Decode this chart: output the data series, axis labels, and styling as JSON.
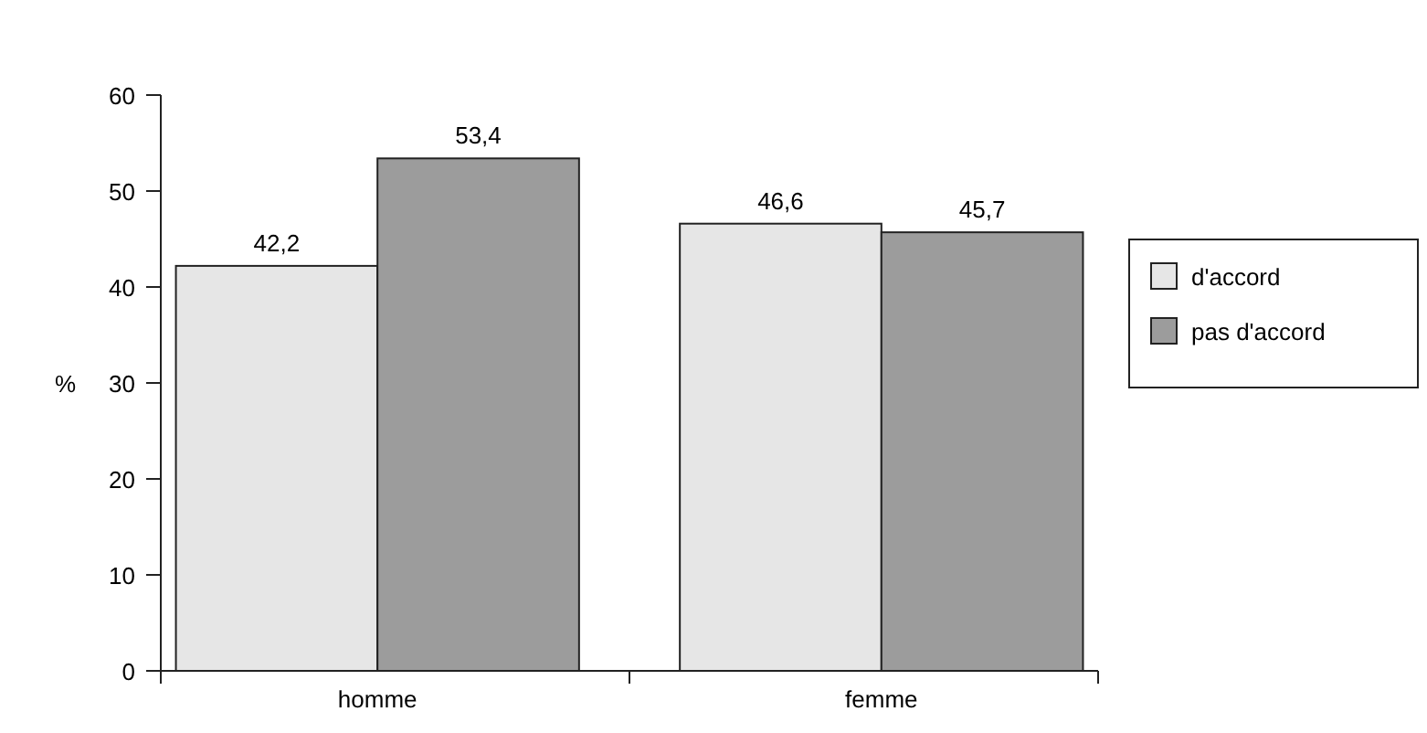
{
  "chart_data": {
    "type": "bar",
    "ylabel": "%",
    "categories": [
      "homme",
      "femme"
    ],
    "series": [
      {
        "name": "d'accord",
        "color": "#e6e6e6",
        "values": [
          42.2,
          46.6
        ],
        "value_labels": [
          "42,2",
          "46,6"
        ]
      },
      {
        "name": "pas d'accord",
        "color": "#9c9c9c",
        "values": [
          53.4,
          45.7
        ],
        "value_labels": [
          "53,4",
          "45,7"
        ]
      }
    ],
    "ylim": [
      0,
      60
    ],
    "yticks": [
      0,
      10,
      20,
      30,
      40,
      50,
      60
    ],
    "grid": false,
    "legend": "right"
  }
}
